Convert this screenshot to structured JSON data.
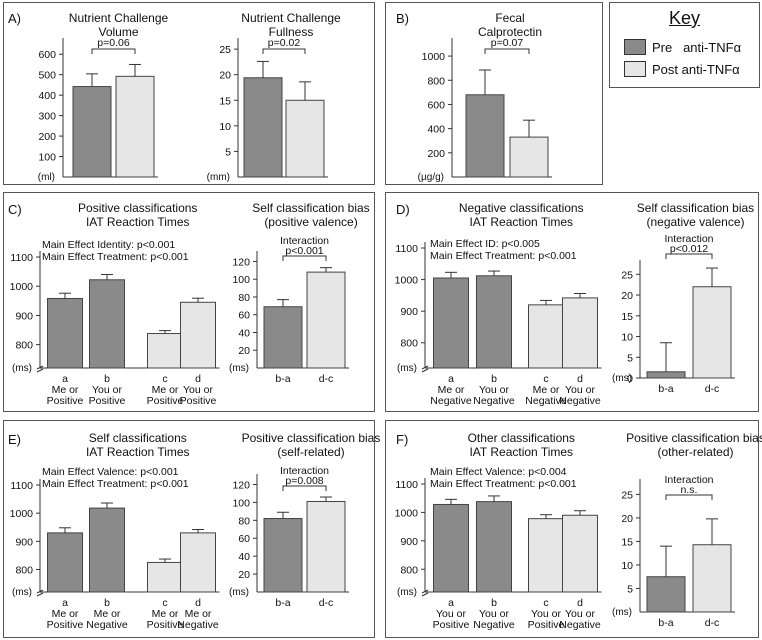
{
  "key": {
    "title": "Key",
    "entries": [
      {
        "label": "Pre   anti-TNFα",
        "color": "#8a8a8a"
      },
      {
        "label": "Post anti-TNFα",
        "color": "#e6e6e6"
      }
    ]
  },
  "panels": [
    {
      "label": "A)"
    },
    {
      "label": "B)"
    },
    {
      "label": "C)"
    },
    {
      "label": "D)"
    },
    {
      "label": "E)"
    },
    {
      "label": "F)"
    }
  ],
  "chart_data": [
    {
      "id": "A1",
      "type": "bar",
      "title": [
        "Nutrient Challenge",
        "Volume"
      ],
      "unit": "(ml)",
      "ylim": [
        0,
        650
      ],
      "yticks": [
        100,
        200,
        300,
        400,
        500,
        600
      ],
      "categories": [
        "Pre anti-TNFα",
        "Post anti-TNFα"
      ],
      "values": [
        442,
        492
      ],
      "errors": [
        62,
        58
      ],
      "colors": [
        "#8a8a8a",
        "#e6e6e6"
      ],
      "annotations": [
        "p=0.06"
      ],
      "xlabels": []
    },
    {
      "id": "A2",
      "type": "bar",
      "title": [
        "Nutrient Challenge",
        "Fullness"
      ],
      "unit": "(mm)",
      "ylim": [
        0,
        26
      ],
      "yticks": [
        5,
        10,
        15,
        20,
        25
      ],
      "categories": [
        "Pre anti-TNFα",
        "Post anti-TNFα"
      ],
      "values": [
        19.4,
        15.0
      ],
      "errors": [
        3.2,
        3.6
      ],
      "colors": [
        "#8a8a8a",
        "#e6e6e6"
      ],
      "annotations": [
        "p=0.02"
      ],
      "xlabels": []
    },
    {
      "id": "B",
      "type": "bar",
      "title": [
        "Fecal",
        "Calprotectin"
      ],
      "unit": "(µg/g)",
      "ylim": [
        0,
        1100
      ],
      "yticks": [
        200,
        400,
        600,
        800,
        1000
      ],
      "categories": [
        "Pre anti-TNFα",
        "Post anti-TNFα"
      ],
      "values": [
        680,
        330
      ],
      "errors": [
        205,
        140
      ],
      "colors": [
        "#8a8a8a",
        "#e6e6e6"
      ],
      "annotations": [
        "p=0.07"
      ],
      "xlabels": []
    },
    {
      "id": "C1",
      "type": "bar",
      "title": [
        "Positive classifications",
        "IAT Reaction Times"
      ],
      "unit": "(ms)",
      "ylim": [
        720,
        1100
      ],
      "yticks": [
        800,
        900,
        1000,
        1100
      ],
      "categories": [
        "a",
        "b",
        "c",
        "d"
      ],
      "values": [
        958,
        1022,
        838,
        945
      ],
      "errors": [
        18,
        18,
        10,
        14
      ],
      "colors": [
        "#8a8a8a",
        "#8a8a8a",
        "#e6e6e6",
        "#e6e6e6"
      ],
      "annotations": [
        "Main Effect Identity: p<0.001",
        "Main Effect Treatment: p<0.001"
      ],
      "xlabels": [
        [
          "a",
          "Me or",
          "Positive"
        ],
        [
          "b",
          "You or",
          "Positive"
        ],
        [
          "c",
          "Me or",
          "Positive"
        ],
        [
          "d",
          "You or",
          "Positive"
        ]
      ]
    },
    {
      "id": "C2",
      "type": "bar",
      "title": [
        "Self classification bias",
        "(positive valence)"
      ],
      "unit": "(ms)",
      "ylim": [
        0,
        125
      ],
      "yticks": [
        20,
        40,
        60,
        80,
        100,
        120
      ],
      "categories": [
        "b-a",
        "d-c"
      ],
      "values": [
        69,
        108
      ],
      "errors": [
        8,
        5
      ],
      "colors": [
        "#8a8a8a",
        "#e6e6e6"
      ],
      "annotations": [
        "Interaction",
        "p<0.001"
      ],
      "xlabels": [
        [
          "b-a"
        ],
        [
          "d-c"
        ]
      ]
    },
    {
      "id": "D1",
      "type": "bar",
      "title": [
        "Negative classifications",
        "IAT Reaction Times"
      ],
      "unit": "(ms)",
      "ylim": [
        720,
        1100
      ],
      "yticks": [
        800,
        900,
        1000,
        1100
      ],
      "categories": [
        "a",
        "b",
        "c",
        "d"
      ],
      "values": [
        1005,
        1012,
        920,
        942
      ],
      "errors": [
        18,
        15,
        14,
        14
      ],
      "colors": [
        "#8a8a8a",
        "#8a8a8a",
        "#e6e6e6",
        "#e6e6e6"
      ],
      "annotations": [
        "Main Effect ID: p<0.005",
        "Main Effect Treatment: p<0.001"
      ],
      "xlabels": [
        [
          "a",
          "Me or",
          "Negative"
        ],
        [
          "b",
          "You or",
          "Negative"
        ],
        [
          "c",
          "Me or",
          "Negative"
        ],
        [
          "d",
          "You or",
          "Negative"
        ]
      ]
    },
    {
      "id": "D2",
      "type": "bar",
      "title": [
        "Self classification bias",
        "(negative valence)"
      ],
      "unit": "(ms)",
      "ylim": [
        0,
        27
      ],
      "yticks": [
        0,
        5,
        10,
        15,
        20,
        25
      ],
      "categories": [
        "b-a",
        "d-c"
      ],
      "values": [
        1.5,
        22
      ],
      "errors": [
        7,
        4.5
      ],
      "colors": [
        "#8a8a8a",
        "#e6e6e6"
      ],
      "annotations": [
        "Interaction",
        "p<0.012"
      ],
      "xlabels": [
        [
          "b-a"
        ],
        [
          "d-c"
        ]
      ]
    },
    {
      "id": "E1",
      "type": "bar",
      "title": [
        "Self classifications",
        "IAT Reaction Times"
      ],
      "unit": "(ms)",
      "ylim": [
        720,
        1100
      ],
      "yticks": [
        800,
        900,
        1000,
        1100
      ],
      "categories": [
        "a",
        "b",
        "c",
        "d"
      ],
      "values": [
        930,
        1018,
        825,
        930
      ],
      "errors": [
        18,
        18,
        12,
        12
      ],
      "colors": [
        "#8a8a8a",
        "#8a8a8a",
        "#e6e6e6",
        "#e6e6e6"
      ],
      "annotations": [
        "Main Effect Valence: p<0.001",
        "Main Effect Treatment: p<0.001"
      ],
      "xlabels": [
        [
          "a",
          "Me or",
          "Positive"
        ],
        [
          "b",
          "Me or",
          "Negative"
        ],
        [
          "c",
          "Me or",
          "Positive"
        ],
        [
          "d",
          "Me or",
          "Negative"
        ]
      ]
    },
    {
      "id": "E2",
      "type": "bar",
      "title": [
        "Positive classification bias",
        "(self-related)"
      ],
      "unit": "(ms)",
      "ylim": [
        0,
        125
      ],
      "yticks": [
        20,
        40,
        60,
        80,
        100,
        120
      ],
      "categories": [
        "b-a",
        "d-c"
      ],
      "values": [
        82,
        101
      ],
      "errors": [
        7,
        5
      ],
      "colors": [
        "#8a8a8a",
        "#e6e6e6"
      ],
      "annotations": [
        "Interaction",
        "p=0.008"
      ],
      "xlabels": [
        [
          "b-a"
        ],
        [
          "d-c"
        ]
      ]
    },
    {
      "id": "F1",
      "type": "bar",
      "title": [
        "Other classifications",
        "IAT Reaction Times"
      ],
      "unit": "(ms)",
      "ylim": [
        720,
        1100
      ],
      "yticks": [
        800,
        900,
        1000,
        1100
      ],
      "categories": [
        "a",
        "b",
        "c",
        "d"
      ],
      "values": [
        1028,
        1038,
        978,
        990
      ],
      "errors": [
        18,
        20,
        14,
        16
      ],
      "colors": [
        "#8a8a8a",
        "#8a8a8a",
        "#e6e6e6",
        "#e6e6e6"
      ],
      "annotations": [
        "Main Effect Valence: p<0.004",
        "Main Effect Treatment: p<0.001"
      ],
      "xlabels": [
        [
          "a",
          "You or",
          "Positive"
        ],
        [
          "b",
          "You or",
          "Negative"
        ],
        [
          "c",
          "You or",
          "Positive"
        ],
        [
          "d",
          "You or",
          "Negative"
        ]
      ]
    },
    {
      "id": "F2",
      "type": "bar",
      "title": [
        "Positive classification bias",
        "(other-related)"
      ],
      "unit": "(ms)",
      "ylim": [
        0,
        27
      ],
      "yticks": [
        5,
        10,
        15,
        20,
        25
      ],
      "categories": [
        "b-a",
        "d-c"
      ],
      "values": [
        7.5,
        14.3
      ],
      "errors": [
        6.5,
        5.5
      ],
      "colors": [
        "#8a8a8a",
        "#e6e6e6"
      ],
      "annotations": [
        "Interaction",
        "n.s."
      ],
      "xlabels": [
        [
          "b-a"
        ],
        [
          "d-c"
        ]
      ]
    }
  ]
}
